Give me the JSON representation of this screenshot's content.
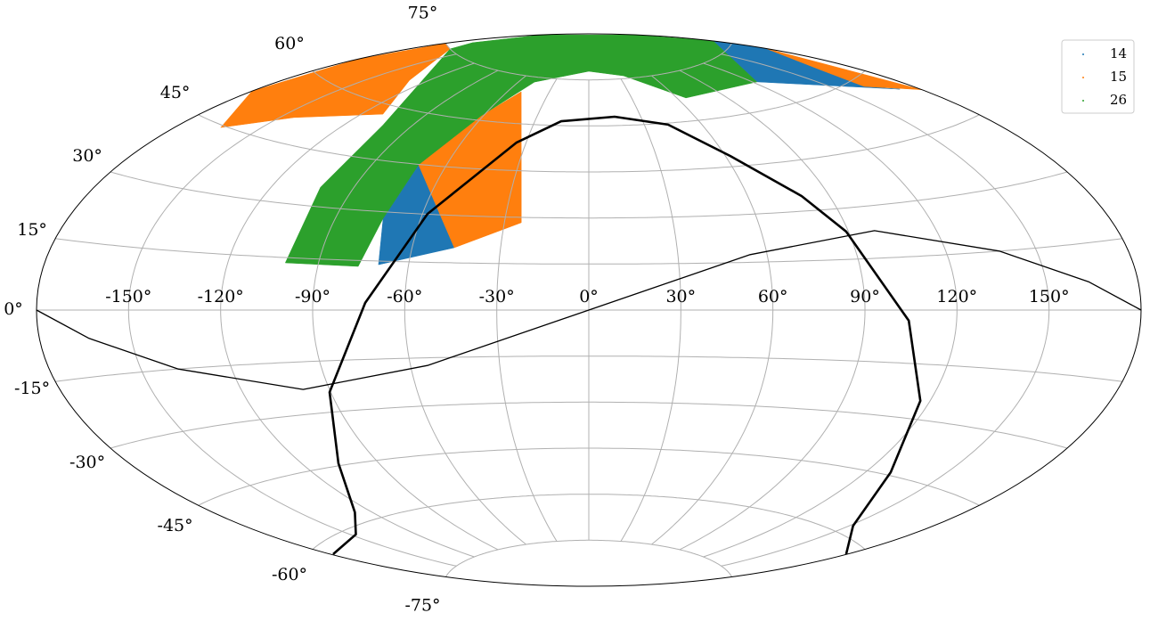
{
  "chart_data": {
    "type": "skymap",
    "projection": "aitoff",
    "xlim": [
      -180,
      180
    ],
    "ylim": [
      -90,
      90
    ],
    "xticks": [
      {
        "value": -150,
        "label": "-150°"
      },
      {
        "value": -120,
        "label": "-120°"
      },
      {
        "value": -90,
        "label": "-90°"
      },
      {
        "value": -60,
        "label": "-60°"
      },
      {
        "value": -30,
        "label": "-30°"
      },
      {
        "value": 0,
        "label": "0°"
      },
      {
        "value": 30,
        "label": "30°"
      },
      {
        "value": 60,
        "label": "60°"
      },
      {
        "value": 90,
        "label": "90°"
      },
      {
        "value": 120,
        "label": "120°"
      },
      {
        "value": 150,
        "label": "150°"
      }
    ],
    "yticks": [
      {
        "value": -75,
        "label": "-75°"
      },
      {
        "value": -60,
        "label": "-60°"
      },
      {
        "value": -45,
        "label": "-45°"
      },
      {
        "value": -30,
        "label": "-30°"
      },
      {
        "value": -15,
        "label": "-15°"
      },
      {
        "value": 0,
        "label": "0°"
      },
      {
        "value": 15,
        "label": "15°"
      },
      {
        "value": 30,
        "label": "30°"
      },
      {
        "value": 45,
        "label": "45°"
      },
      {
        "value": 60,
        "label": "60°"
      },
      {
        "value": 75,
        "label": "75°"
      }
    ],
    "grid": true,
    "legend": "upper right",
    "series": [
      {
        "name": "14",
        "color": "#1f77b4",
        "regions": [
          {
            "lon": [
              -73.3,
              -71.4,
              -45.7,
              -70.0
            ],
            "lat": [
              28.0,
              44.9,
              19.8,
              13.9
            ]
          },
          {
            "lon": [
              180,
              180,
              165.9,
              163.2,
              173.2,
              122.4
            ],
            "lat": [
              77,
              71.3,
              64.2,
              58.1,
              54.8,
              67.2
            ]
          }
        ]
      },
      {
        "name": "15",
        "color": "#ff7f0e",
        "regions": [
          {
            "lon": [
              -164.5,
              -180,
              -180,
              -180,
              -164.8,
              -130.0,
              -110.5,
              -144.6
            ],
            "lat": [
              44.5,
              52.4,
              65,
              75,
              75.0,
              66.7,
              57.4,
              51.2
            ]
          },
          {
            "lon": [
              -71.4,
              -61.2,
              -50.4,
              -24.0,
              -45.7
            ],
            "lat": [
              44.9,
              61.4,
              70.0,
              28.3,
              19.8
            ]
          },
          {
            "lon": [
              180,
              180,
              163.2,
              165.9
            ],
            "lat": [
              71.3,
              52.9,
              58.1,
              64.2
            ]
          }
        ]
      },
      {
        "name": "26",
        "color": "#2ca02c",
        "regions": [
          {
            "lon": [
              -101.0,
              -102.3,
              -103.4,
              -164.8,
              -172.0,
              -180,
              180,
              180,
              122.4,
              65.6,
              34.4,
              0,
              -47.1,
              -61.2,
              -71.4,
              -73.3,
              -76.6
            ],
            "lat": [
              13.5,
              35.5,
              54.7,
              75.0,
              77.7,
              85,
              85,
              77,
              67.2,
              67.1,
              75.9,
              77.8,
              73.4,
              61.4,
              44.9,
              28.0,
              13.2
            ]
          }
        ]
      }
    ],
    "lines": [
      {
        "color": "#000000",
        "linewidth": 1.3,
        "lon": [
          -180,
          -163.8,
          -137.7,
          -99.0,
          -54.3,
          0,
          54.3,
          99.0,
          137.7,
          163.8,
          180
        ],
        "lat": [
          0,
          -6.4,
          -15.0,
          -22.9,
          -17.4,
          0,
          17.4,
          22.9,
          15.0,
          6.4,
          0
        ]
      },
      {
        "color": "#000000",
        "linewidth": 2.6,
        "lon": [
          -179.1,
          -147.6,
          -127.6,
          -105.9,
          -90.4,
          -72.9,
          -58.2,
          -46.9,
          -34.5,
          -15.4,
          15.0,
          42.6,
          62.1,
          79.9,
          89.2,
          104.4,
          116.7,
          129.6,
          151.5,
          179.7
        ],
        "lat": [
          -62.35,
          -61.6,
          -57.2,
          -44.3,
          -24.2,
          2.2,
          30.1,
          42.0,
          54.0,
          61.4,
          62.9,
          59.5,
          48.3,
          34.5,
          23.2,
          -3.0,
          -25.0,
          -44.2,
          -57.7,
          -62.2
        ]
      }
    ]
  }
}
